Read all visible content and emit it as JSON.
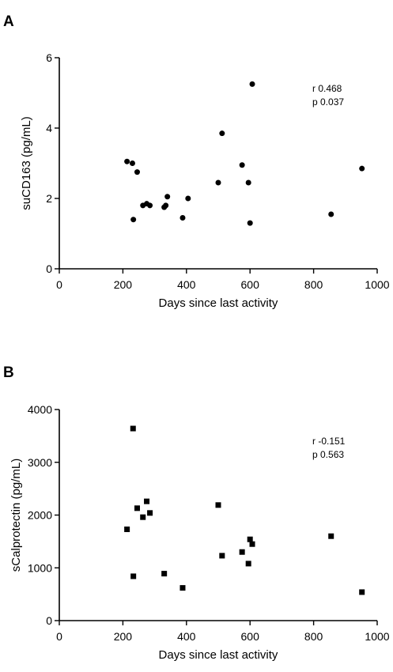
{
  "chart_data": [
    {
      "type": "scatter",
      "panel_label": "A",
      "title": "",
      "xlabel": "Days since last activity",
      "ylabel": "suCD163 (pg/mL)",
      "xlim": [
        0,
        1000
      ],
      "ylim": [
        0,
        6
      ],
      "x_ticks": [
        0,
        200,
        400,
        600,
        800,
        1000
      ],
      "y_ticks": [
        0,
        2,
        4,
        6
      ],
      "grid": false,
      "marker": "circle",
      "marker_color": "#000000",
      "annotation": [
        "r 0.468",
        "p 0.037"
      ],
      "points": [
        {
          "x": 213,
          "y": 3.05
        },
        {
          "x": 230,
          "y": 3.0
        },
        {
          "x": 233,
          "y": 1.4
        },
        {
          "x": 245,
          "y": 2.75
        },
        {
          "x": 263,
          "y": 1.8
        },
        {
          "x": 275,
          "y": 1.85
        },
        {
          "x": 285,
          "y": 1.8
        },
        {
          "x": 330,
          "y": 1.75
        },
        {
          "x": 335,
          "y": 1.8
        },
        {
          "x": 340,
          "y": 2.05
        },
        {
          "x": 388,
          "y": 1.45
        },
        {
          "x": 405,
          "y": 2.0
        },
        {
          "x": 500,
          "y": 2.45
        },
        {
          "x": 512,
          "y": 3.85
        },
        {
          "x": 575,
          "y": 2.95
        },
        {
          "x": 595,
          "y": 2.45
        },
        {
          "x": 600,
          "y": 1.3
        },
        {
          "x": 607,
          "y": 5.25
        },
        {
          "x": 855,
          "y": 1.55
        },
        {
          "x": 952,
          "y": 2.85
        }
      ]
    },
    {
      "type": "scatter",
      "panel_label": "B",
      "title": "",
      "xlabel": "Days since last activity",
      "ylabel": "sCalprotectin (pg/mL)",
      "xlim": [
        0,
        1000
      ],
      "ylim": [
        0,
        4000
      ],
      "x_ticks": [
        0,
        200,
        400,
        600,
        800,
        1000
      ],
      "y_ticks": [
        0,
        1000,
        2000,
        3000,
        4000
      ],
      "grid": false,
      "marker": "square",
      "marker_color": "#000000",
      "annotation": [
        "r -0.151",
        "p 0.563"
      ],
      "points": [
        {
          "x": 213,
          "y": 1730
        },
        {
          "x": 232,
          "y": 3640
        },
        {
          "x": 233,
          "y": 840
        },
        {
          "x": 245,
          "y": 2130
        },
        {
          "x": 263,
          "y": 1960
        },
        {
          "x": 275,
          "y": 2260
        },
        {
          "x": 285,
          "y": 2040
        },
        {
          "x": 330,
          "y": 890
        },
        {
          "x": 388,
          "y": 620
        },
        {
          "x": 500,
          "y": 2190
        },
        {
          "x": 512,
          "y": 1230
        },
        {
          "x": 575,
          "y": 1300
        },
        {
          "x": 595,
          "y": 1080
        },
        {
          "x": 600,
          "y": 1540
        },
        {
          "x": 607,
          "y": 1450
        },
        {
          "x": 855,
          "y": 1600
        },
        {
          "x": 952,
          "y": 540
        }
      ]
    }
  ]
}
